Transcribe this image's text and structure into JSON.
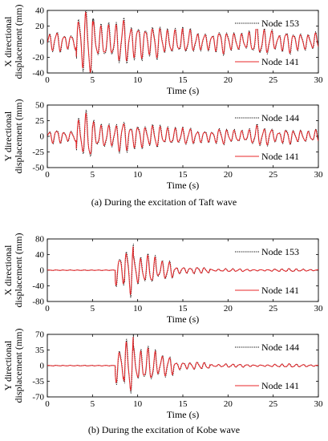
{
  "captions": {
    "a": "(a) During the excitation of Taft wave",
    "b": "(b) During the excitation of Kobe wave"
  },
  "colors": {
    "axis": "#000000",
    "node_dotted": "#000000",
    "node_141": "#e8272a"
  },
  "chart_data": [
    {
      "type": "line",
      "id": "taft-x",
      "xlabel": "Time (s)",
      "ylabel": [
        "X directional",
        "displacement (mm)"
      ],
      "xlim": [
        0,
        30
      ],
      "ylim": [
        -40,
        40
      ],
      "xticks": [
        0,
        5,
        10,
        15,
        20,
        25,
        30
      ],
      "yticks": [
        -40,
        -20,
        0,
        20,
        40
      ],
      "grid": false,
      "signal": "taft",
      "peak_amplitude": 38,
      "series": [
        {
          "name": "Node 153",
          "style": "dotted",
          "color": "#000000",
          "scale": 1.08
        },
        {
          "name": "Node 141",
          "style": "solid",
          "color": "#e8272a",
          "scale": 0.95
        }
      ]
    },
    {
      "type": "line",
      "id": "taft-y",
      "xlabel": "Time (s)",
      "ylabel": [
        "Y directional",
        "displacement (mm)"
      ],
      "xlim": [
        0,
        30
      ],
      "ylim": [
        -50,
        50
      ],
      "xticks": [
        0,
        5,
        10,
        15,
        20,
        25,
        30
      ],
      "yticks": [
        -50,
        -25,
        0,
        25,
        50
      ],
      "grid": false,
      "signal": "taft",
      "peak_amplitude": 33,
      "series": [
        {
          "name": "Node 144",
          "style": "dotted",
          "color": "#000000",
          "scale": 1.08
        },
        {
          "name": "Node 141",
          "style": "solid",
          "color": "#e8272a",
          "scale": 0.95
        }
      ]
    },
    {
      "type": "line",
      "id": "kobe-x",
      "xlabel": "Time (s)",
      "ylabel": [
        "X directional",
        "displacement (mm)"
      ],
      "xlim": [
        0,
        30
      ],
      "ylim": [
        -80,
        80
      ],
      "xticks": [
        0,
        5,
        10,
        15,
        20,
        25,
        30
      ],
      "yticks": [
        -80,
        -40,
        0,
        40,
        80
      ],
      "grid": false,
      "signal": "kobe",
      "peak_amplitude": 55,
      "series": [
        {
          "name": "Node 153",
          "style": "dotted",
          "color": "#000000",
          "scale": 1.06
        },
        {
          "name": "Node 141",
          "style": "solid",
          "color": "#e8272a",
          "scale": 0.95
        }
      ]
    },
    {
      "type": "line",
      "id": "kobe-y",
      "xlabel": "Time (s)",
      "ylabel": [
        "Y directional",
        "displacement (mm)"
      ],
      "xlim": [
        0,
        30
      ],
      "ylim": [
        -70,
        70
      ],
      "xticks": [
        0,
        5,
        10,
        15,
        20,
        25,
        30
      ],
      "yticks": [
        -70,
        -35,
        0,
        35,
        70
      ],
      "grid": false,
      "signal": "kobe",
      "peak_amplitude": 55,
      "series": [
        {
          "name": "Node 144",
          "style": "dotted",
          "color": "#000000",
          "scale": 1.06
        },
        {
          "name": "Node 141",
          "style": "solid",
          "color": "#e8272a",
          "scale": 0.95
        }
      ]
    }
  ]
}
